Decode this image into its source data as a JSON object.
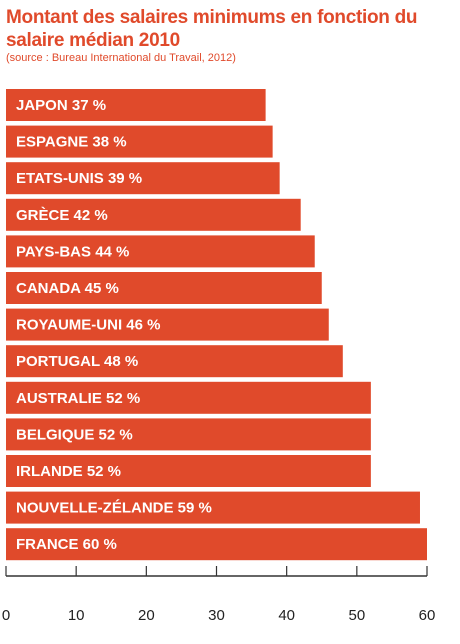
{
  "chart_data": {
    "type": "bar",
    "orientation": "horizontal",
    "title": "Montant des salaires minimums en fonction du salaire médian 2010",
    "subtitle": "(source : Bureau International du Travail, 2012)",
    "categories": [
      "JAPON",
      "ESPAGNE",
      "ETATS-UNIS",
      "GRÈCE",
      "PAYS-BAS",
      "CANADA",
      "ROYAUME-UNI",
      "PORTUGAL",
      "AUSTRALIE",
      "BELGIQUE",
      "IRLANDE",
      "NOUVELLE-ZÉLANDE",
      "FRANCE"
    ],
    "values": [
      37,
      38,
      39,
      42,
      44,
      45,
      46,
      48,
      52,
      52,
      52,
      59,
      60
    ],
    "value_labels": [
      "37 %",
      "38 %",
      "39 %",
      "42 %",
      "44 %",
      "45 %",
      "46 %",
      "48 %",
      "52 %",
      "52 %",
      "52 %",
      "59 %",
      "60 %"
    ],
    "xlim": [
      0,
      60
    ],
    "xticks": [
      "0",
      "10",
      "20",
      "30",
      "40",
      "50",
      "60"
    ],
    "grid": false,
    "bar_color": "#e04a2b",
    "label_color": "#ffffff",
    "axis_color": "#333333"
  }
}
